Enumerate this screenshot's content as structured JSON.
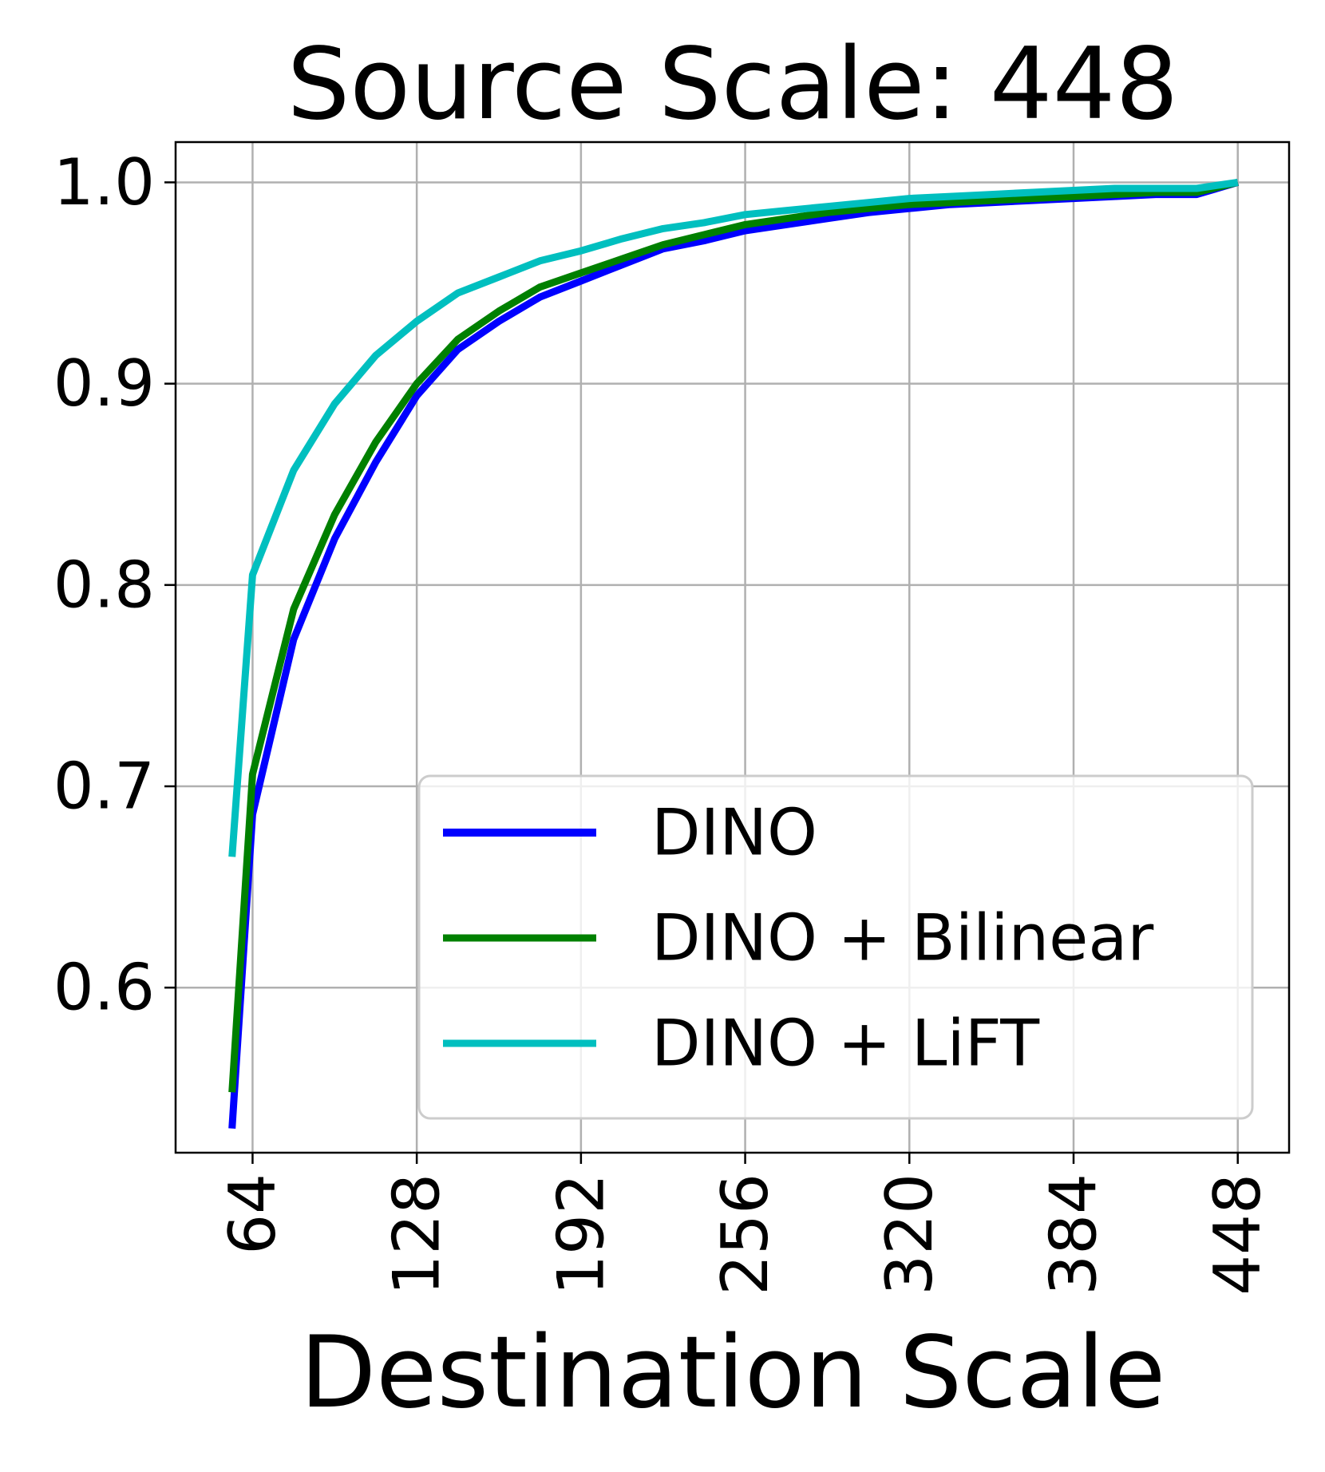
{
  "chart_data": {
    "type": "line",
    "title": "Source Scale: 448",
    "xlabel": "Destination Scale",
    "ylabel": "",
    "xlim": [
      34,
      468
    ],
    "ylim": [
      0.518,
      1.02
    ],
    "xticks": [
      64,
      128,
      192,
      256,
      320,
      384,
      448
    ],
    "xtick_labels": [
      "64",
      "128",
      "192",
      "256",
      "320",
      "384",
      "448"
    ],
    "yticks": [
      0.6,
      0.7,
      0.8,
      0.9,
      1.0
    ],
    "ytick_labels": [
      "0.6",
      "0.7",
      "0.8",
      "0.9",
      "1.0"
    ],
    "grid": true,
    "legend_position": "lower-right",
    "x": [
      56,
      64,
      80,
      96,
      112,
      128,
      144,
      160,
      176,
      192,
      208,
      224,
      240,
      256,
      272,
      288,
      304,
      320,
      336,
      352,
      368,
      384,
      400,
      416,
      432,
      448
    ],
    "series": [
      {
        "name": "DINO",
        "color": "#0000ff",
        "values": [
          0.53,
          0.686,
          0.773,
          0.823,
          0.861,
          0.894,
          0.917,
          0.931,
          0.943,
          0.951,
          0.959,
          0.967,
          0.971,
          0.976,
          0.979,
          0.982,
          0.985,
          0.987,
          0.989,
          0.99,
          0.991,
          0.992,
          0.993,
          0.994,
          0.994,
          1.0
        ]
      },
      {
        "name": "DINO + Bilinear",
        "color": "#008000",
        "values": [
          0.548,
          0.706,
          0.788,
          0.835,
          0.871,
          0.9,
          0.922,
          0.936,
          0.948,
          0.955,
          0.962,
          0.969,
          0.974,
          0.979,
          0.982,
          0.985,
          0.987,
          0.989,
          0.99,
          0.991,
          0.992,
          0.993,
          0.994,
          0.995,
          0.995,
          1.0
        ]
      },
      {
        "name": "DINO + LiFT",
        "color": "#00bfbf",
        "values": [
          0.665,
          0.805,
          0.857,
          0.89,
          0.914,
          0.931,
          0.945,
          0.953,
          0.961,
          0.966,
          0.972,
          0.977,
          0.98,
          0.984,
          0.986,
          0.988,
          0.99,
          0.992,
          0.993,
          0.994,
          0.995,
          0.996,
          0.997,
          0.997,
          0.997,
          1.0
        ]
      }
    ]
  }
}
